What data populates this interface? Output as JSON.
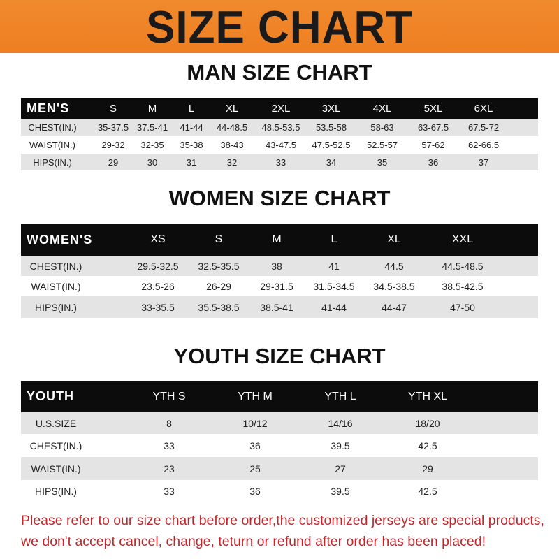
{
  "banner": {
    "title": "SIZE CHART",
    "color": "#ef8427"
  },
  "men": {
    "title": "MAN SIZE CHART",
    "header": [
      "MEN'S",
      "S",
      "M",
      "L",
      "XL",
      "2XL",
      "3XL",
      "4XL",
      "5XL",
      "6XL"
    ],
    "rows": [
      [
        "CHEST(IN.)",
        "35-37.5",
        "37.5-41",
        "41-44",
        "44-48.5",
        "48.5-53.5",
        "53.5-58",
        "58-63",
        "63-67.5",
        "67.5-72"
      ],
      [
        "WAIST(IN.)",
        "29-32",
        "32-35",
        "35-38",
        "38-43",
        "43-47.5",
        "47.5-52.5",
        "52.5-57",
        "57-62",
        "62-66.5"
      ],
      [
        "HIPS(IN.)",
        "29",
        "30",
        "31",
        "32",
        "33",
        "34",
        "35",
        "36",
        "37"
      ]
    ]
  },
  "women": {
    "title": "WOMEN SIZE CHART",
    "header": [
      "WOMEN'S",
      "XS",
      "S",
      "M",
      "L",
      "XL",
      "XXL"
    ],
    "rows": [
      [
        "CHEST(IN.)",
        "29.5-32.5",
        "32.5-35.5",
        "38",
        "41",
        "44.5",
        "44.5-48.5"
      ],
      [
        "WAIST(IN.)",
        "23.5-26",
        "26-29",
        "29-31.5",
        "31.5-34.5",
        "34.5-38.5",
        "38.5-42.5"
      ],
      [
        "HIPS(IN.)",
        "33-35.5",
        "35.5-38.5",
        "38.5-41",
        "41-44",
        "44-47",
        "47-50"
      ]
    ]
  },
  "youth": {
    "title": "YOUTH SIZE CHART",
    "header": [
      "YOUTH",
      "YTH S",
      "YTH M",
      "YTH L",
      "YTH XL"
    ],
    "rows": [
      [
        "U.S.SIZE",
        "8",
        "10/12",
        "14/16",
        "18/20"
      ],
      [
        "CHEST(IN.)",
        "33",
        "36",
        "39.5",
        "42.5"
      ],
      [
        "WAIST(IN.)",
        "23",
        "25",
        "27",
        "29"
      ],
      [
        "HIPS(IN.)",
        "33",
        "36",
        "39.5",
        "42.5"
      ]
    ]
  },
  "notice": {
    "line1": "Please refer to our size chart before order,the customized jerseys are special products,",
    "line2": "we don't accept cancel, change, teturn or refund after order has been placed!",
    "color": "#c2262a"
  }
}
